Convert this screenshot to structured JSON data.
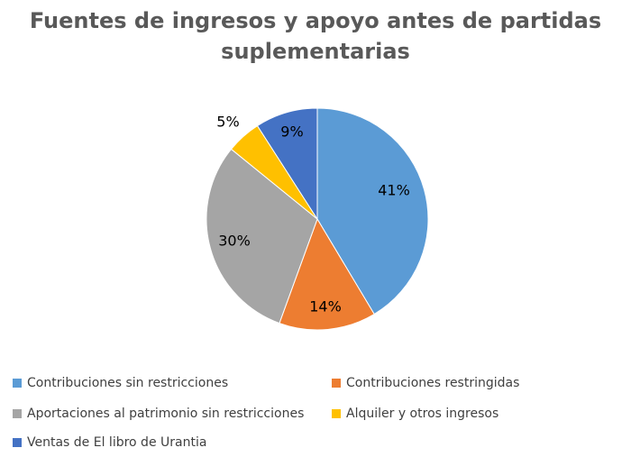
{
  "chart_data": {
    "type": "pie",
    "title": "Fuentes de ingresos y apoyo antes de partidas suplementarias",
    "title_lines": [
      "Fuentes de ingresos y apoyo antes de partidas",
      "suplementarias"
    ],
    "slices": [
      {
        "name": "Contribuciones sin restricciones",
        "value": 41,
        "label": "41%",
        "color": "#5B9BD5"
      },
      {
        "name": "Contribuciones restringidas",
        "value": 14,
        "label": "14%",
        "color": "#ED7D31"
      },
      {
        "name": "Aportaciones al patrimonio sin restricciones",
        "value": 30,
        "label": "30%",
        "color": "#A5A5A5"
      },
      {
        "name": "Alquiler y otros ingresos",
        "value": 5,
        "label": "5%",
        "color": "#FFC000"
      },
      {
        "name": "Ventas de El libro de Urantia",
        "value": 9,
        "label": "9%",
        "color": "#4472C4"
      }
    ],
    "legend_position": "bottom"
  }
}
